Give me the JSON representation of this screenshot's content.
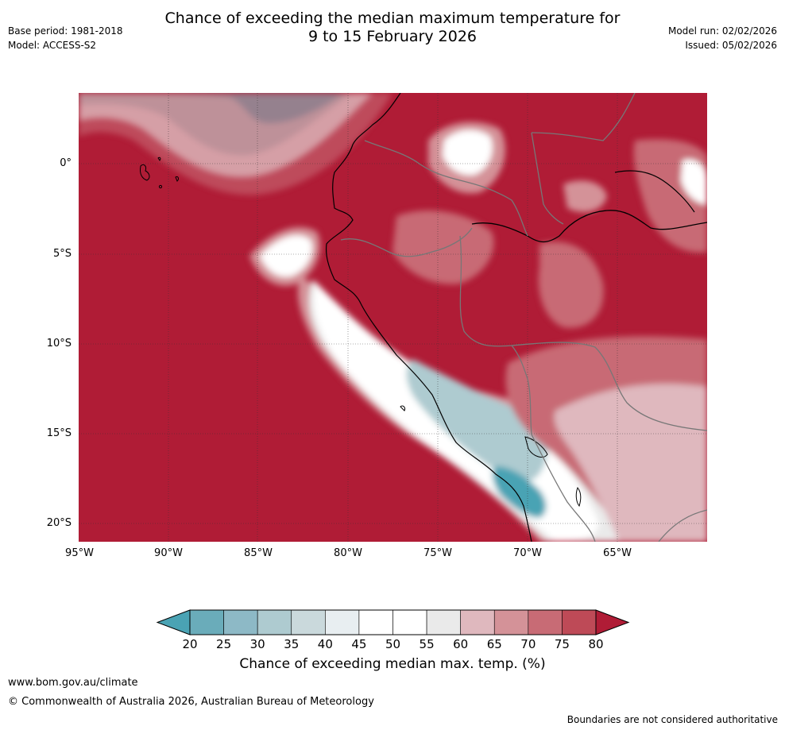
{
  "header": {
    "title_line1": "Chance of exceeding the median maximum temperature for",
    "title_line2": "9 to 15 February 2026",
    "base_period": "Base period: 1981-2018",
    "model": "Model: ACCESS-S2",
    "model_run": "Model run: 02/02/2026",
    "issued": "Issued: 05/02/2026"
  },
  "map": {
    "lat_labels": [
      "0°",
      "5°S",
      "10°S",
      "15°S",
      "20°S"
    ],
    "lon_labels": [
      "95°W",
      "90°W",
      "85°W",
      "80°W",
      "75°W",
      "70°W",
      "65°W"
    ],
    "colors": {
      "c20": "#4aa3b4",
      "c25": "#6aacba",
      "c30": "#8db9c6",
      "c35": "#aecbd0",
      "c40": "#cad9dc",
      "c45": "#e8eef1",
      "c50": "#ffffff",
      "c55": "#eaeaea",
      "c60": "#dfb8be",
      "c65": "#d49298",
      "c70": "#c86b75",
      "c75": "#be4a57",
      "c80": "#b01c36"
    }
  },
  "colorbar": {
    "ticks": [
      "20",
      "25",
      "30",
      "35",
      "40",
      "45",
      "50",
      "55",
      "60",
      "65",
      "70",
      "75",
      "80"
    ],
    "colors": [
      "#6aacba",
      "#8db9c6",
      "#aecbd0",
      "#cad9dc",
      "#e8eef1",
      "#ffffff",
      "#ffffff",
      "#eaeaea",
      "#dfb8be",
      "#d49298",
      "#c86b75",
      "#be4a57"
    ],
    "low_color": "#4aa3b4",
    "high_color": "#b01c36",
    "title": "Chance of exceeding median max. temp. (%)"
  },
  "footer": {
    "url": "www.bom.gov.au/climate",
    "copyright": "© Commonwealth of Australia 2026, Australian Bureau of Meteorology",
    "disclaimer": "Boundaries are not considered authoritative"
  }
}
